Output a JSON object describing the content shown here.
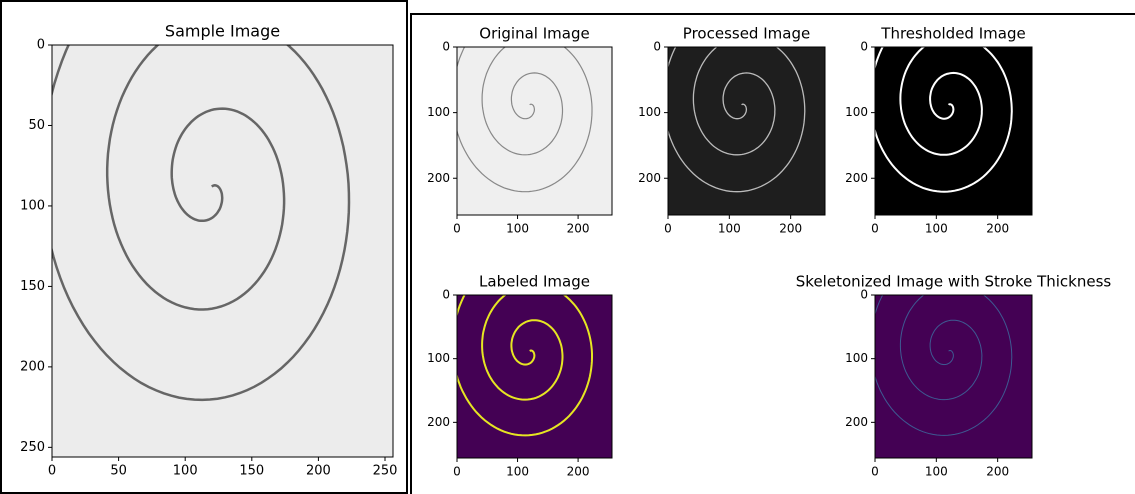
{
  "panels": [
    {
      "title": "Sample Image",
      "xlim": [
        0,
        256
      ],
      "ylim": [
        256,
        0
      ],
      "xticks": [
        0,
        50,
        100,
        150,
        200,
        250
      ],
      "yticks": [
        0,
        50,
        100,
        150,
        200,
        250
      ]
    },
    {
      "title": "Original Image",
      "xlim": [
        0,
        256
      ],
      "ylim": [
        256,
        0
      ],
      "xticks": [
        0,
        100,
        200
      ],
      "yticks": [
        0,
        100,
        200
      ]
    },
    {
      "title": "Processed Image",
      "xlim": [
        0,
        256
      ],
      "ylim": [
        256,
        0
      ],
      "xticks": [
        0,
        100,
        200
      ],
      "yticks": [
        0,
        100,
        200
      ]
    },
    {
      "title": "Thresholded Image",
      "xlim": [
        0,
        256
      ],
      "ylim": [
        256,
        0
      ],
      "xticks": [
        0,
        100,
        200
      ],
      "yticks": [
        0,
        100,
        200
      ]
    },
    {
      "title": "Labeled Image",
      "xlim": [
        0,
        256
      ],
      "ylim": [
        256,
        0
      ],
      "xticks": [
        0,
        100,
        200
      ],
      "yticks": [
        0,
        100,
        200
      ]
    },
    {
      "title": "Skeletonized Image with Stroke Thickness",
      "xlim": [
        0,
        256
      ],
      "ylim": [
        256,
        0
      ],
      "xticks": [
        0,
        100,
        200
      ],
      "yticks": [
        0,
        100,
        200
      ]
    }
  ]
}
